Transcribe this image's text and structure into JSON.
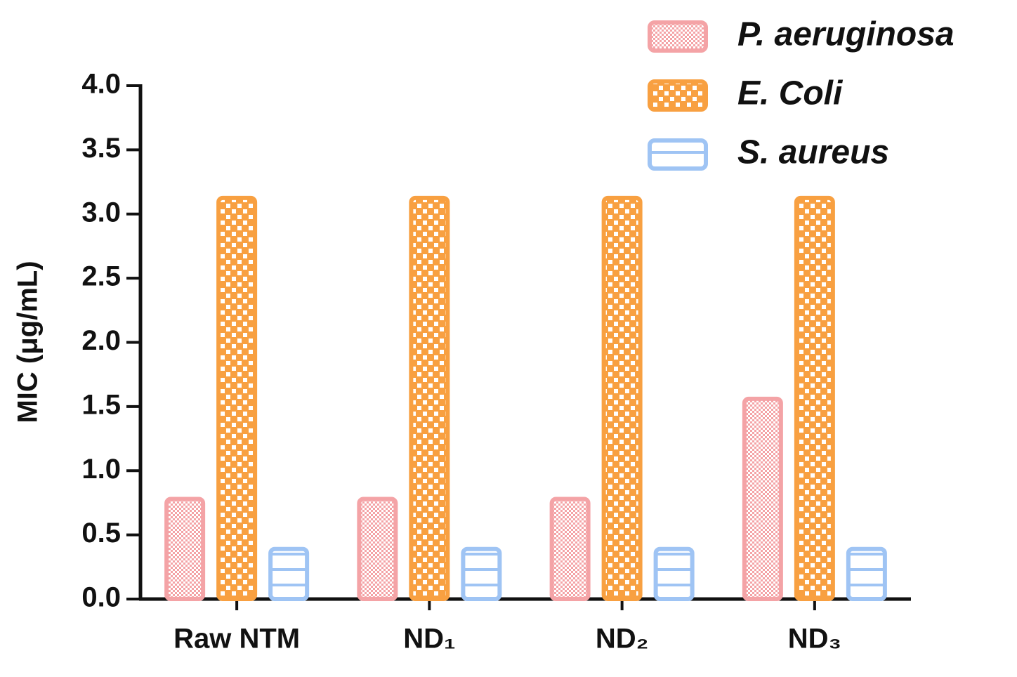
{
  "chart_data": {
    "type": "bar",
    "y_label": "MIC (μg/mL)",
    "categories": [
      "Raw NTM",
      "ND₁",
      "ND₂",
      "ND₃"
    ],
    "series": [
      {
        "name": "P. aeruginosa",
        "color": "#f4a3a6",
        "values": [
          0.78,
          0.78,
          0.78,
          1.56
        ]
      },
      {
        "name": "E. Coli",
        "color": "#f8a041",
        "values": [
          3.125,
          3.125,
          3.125,
          3.125
        ]
      },
      {
        "name": "S. aureus",
        "color": "#9fc4f4",
        "values": [
          0.39,
          0.39,
          0.39,
          0.39
        ]
      }
    ],
    "ylim": [
      0,
      4
    ],
    "yticks": [
      {
        "value": 0,
        "label": "0.0"
      },
      0.5,
      {
        "value": 1,
        "label": "1.0"
      },
      1.5,
      {
        "value": 2,
        "label": "2.0"
      },
      2.5,
      {
        "value": 3,
        "label": "3.0"
      },
      3.5,
      {
        "value": 4,
        "label": "4.0"
      }
    ],
    "legend": "top-right"
  }
}
